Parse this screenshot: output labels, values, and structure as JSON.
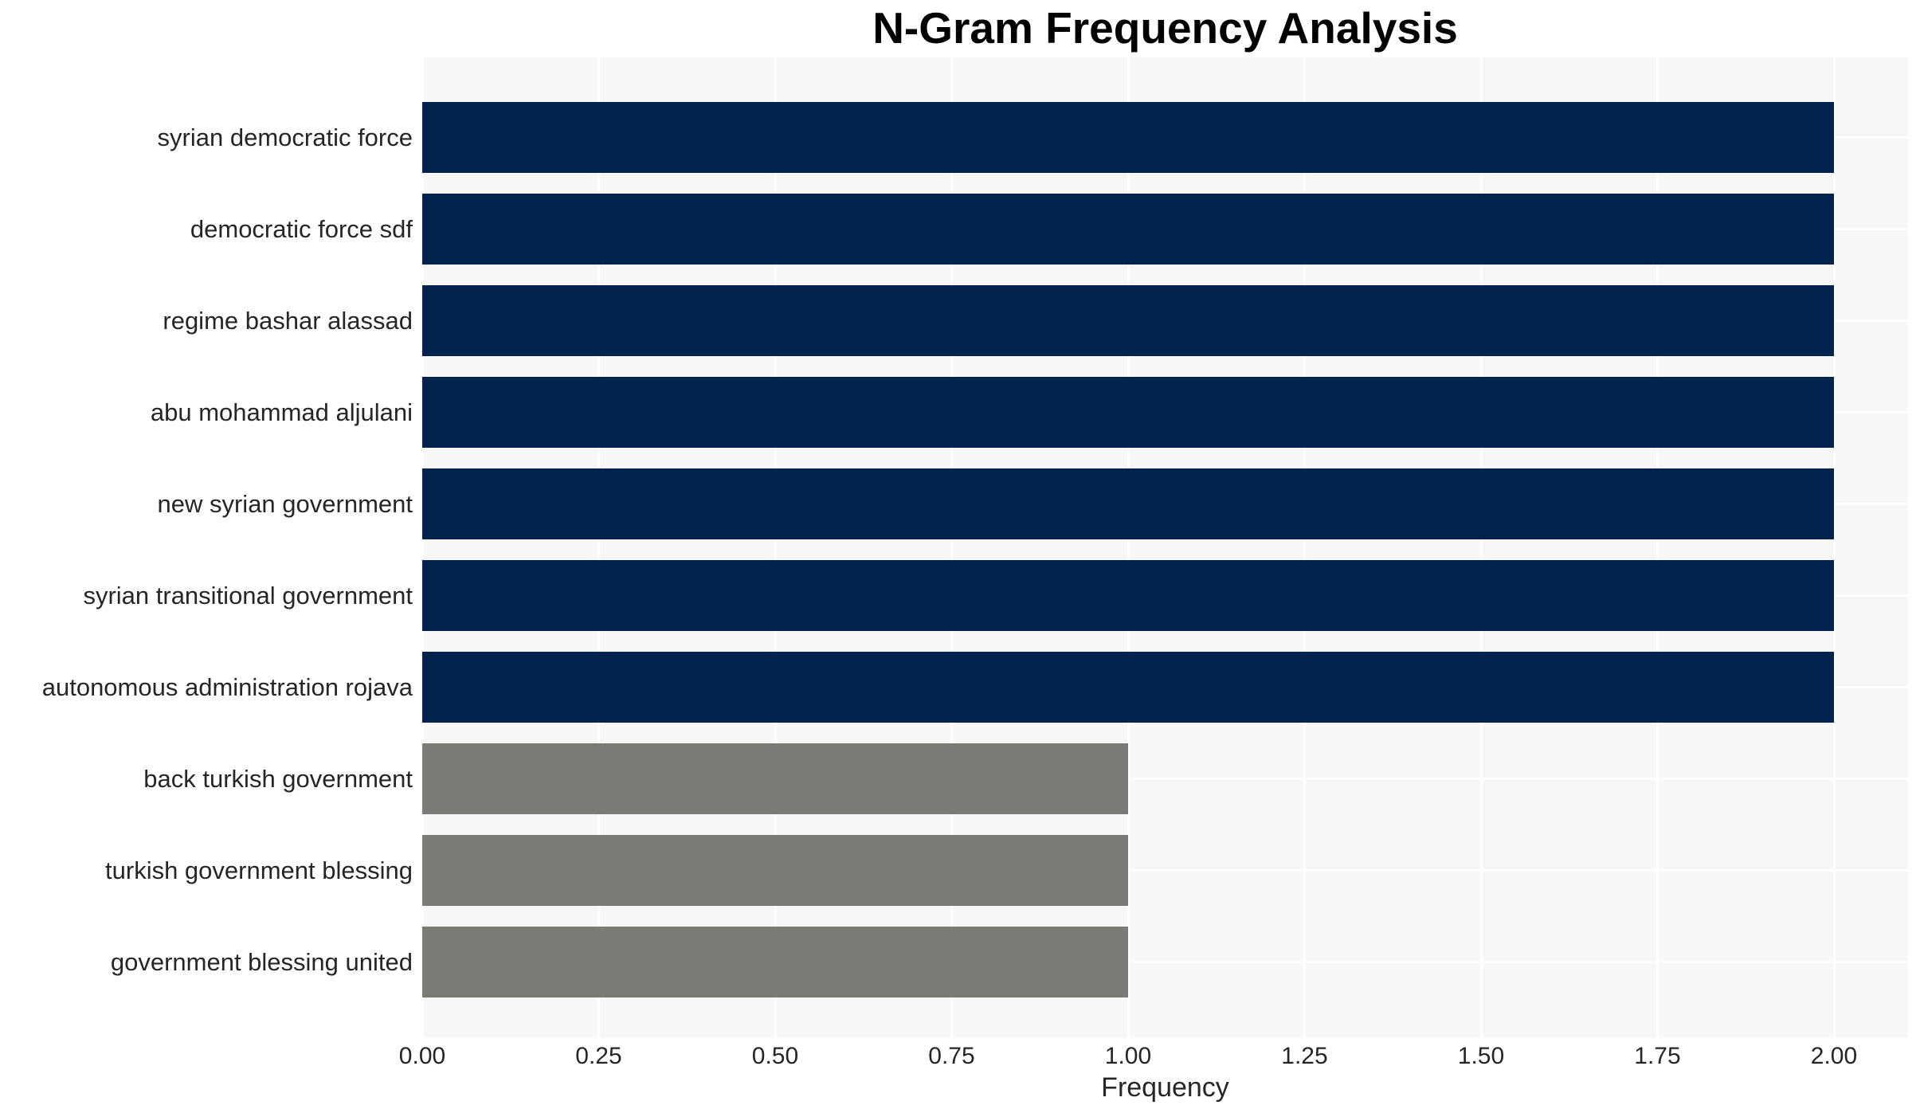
{
  "chart_data": {
    "type": "bar",
    "orientation": "horizontal",
    "title": "N-Gram Frequency Analysis",
    "xlabel": "Frequency",
    "ylabel": "",
    "categories": [
      "syrian democratic force",
      "democratic force sdf",
      "regime bashar alassad",
      "abu mohammad aljulani",
      "new syrian government",
      "syrian transitional government",
      "autonomous administration rojava",
      "back turkish government",
      "turkish government blessing",
      "government blessing united"
    ],
    "values": [
      2,
      2,
      2,
      2,
      2,
      2,
      2,
      1,
      1,
      1
    ],
    "bar_colors": [
      "#02234E",
      "#02234E",
      "#02234E",
      "#02234E",
      "#02234E",
      "#02234E",
      "#02234E",
      "#7B7A76",
      "#7B7A76",
      "#7B7A76"
    ],
    "xlim": [
      0,
      2.105
    ],
    "xticks": [
      0,
      0.25,
      0.5,
      0.75,
      1,
      1.25,
      1.5,
      1.75,
      2
    ],
    "xtick_labels": [
      "0.00",
      "0.25",
      "0.50",
      "0.75",
      "1.00",
      "1.25",
      "1.50",
      "1.75",
      "2.00"
    ],
    "grid": true,
    "legend": false,
    "colors": {
      "bar_primary": "#02234E",
      "bar_secondary": "#7B7A76",
      "plot_background": "#F7F7F7",
      "gridline": "#FFFFFF",
      "tick_text": "#262626",
      "title_text": "#000000"
    }
  }
}
